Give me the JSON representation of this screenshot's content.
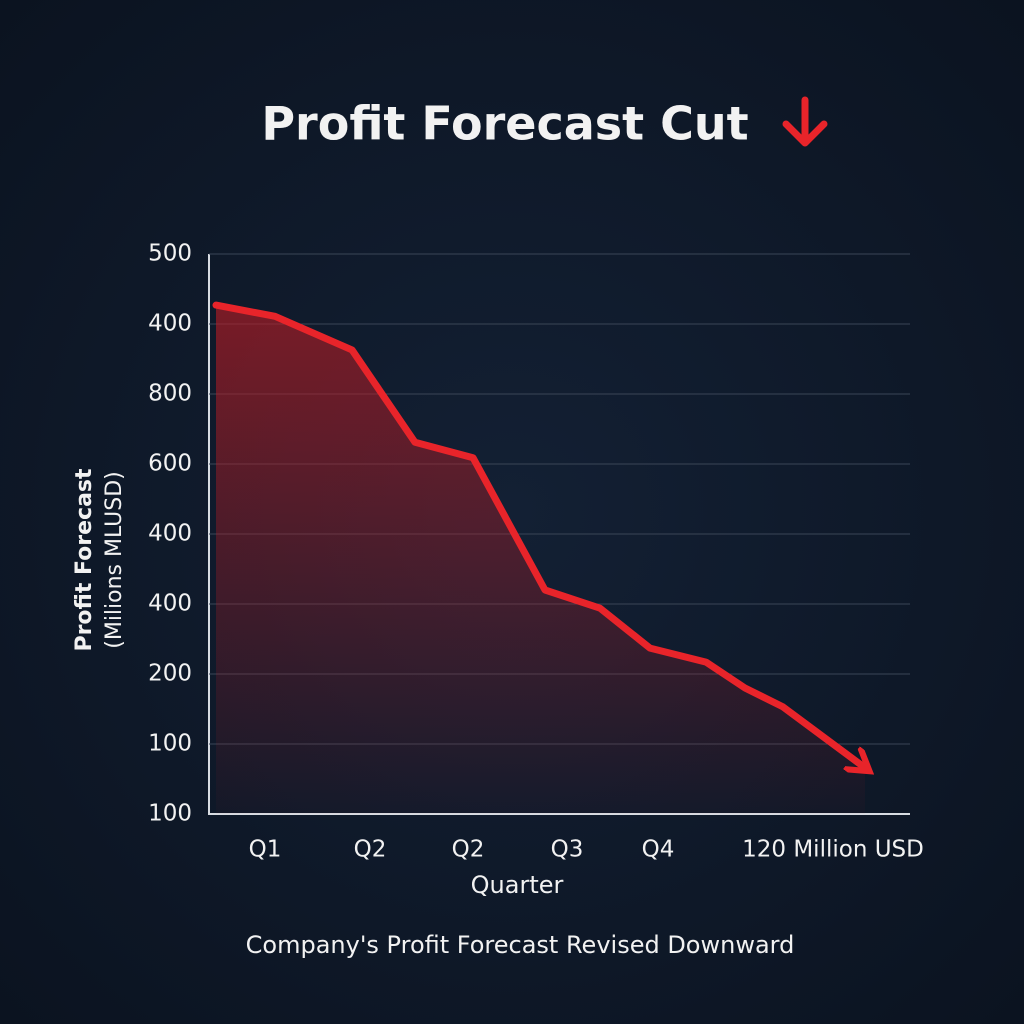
{
  "chart_data": {
    "type": "line",
    "title": "Profit Forecast Cut",
    "y_label": [
      "Profit  Forecast",
      "(Milions MLUSD)"
    ],
    "x_label": "Quarter",
    "caption": "Company's Profit Forecast Revised Downward",
    "x": [
      0.07,
      0.66,
      1.43,
      2.06,
      2.64,
      3.36,
      3.91,
      4.41,
      4.97,
      5.36,
      5.74,
      6.56
    ],
    "series": [
      {
        "color": "#e8242a",
        "values": [
          7.27,
          7.11,
          6.63,
          5.31,
          5.09,
          3.2,
          2.94,
          2.37,
          2.17,
          1.8,
          1.53,
          0.66
        ]
      }
    ],
    "xlim": [
      0,
      7.01
    ],
    "xticks": [
      {
        "value": 0.56,
        "label": "Q1"
      },
      {
        "value": 1.61,
        "label": "Q2"
      },
      {
        "value": 2.59,
        "label": "Q2"
      },
      {
        "value": 3.58,
        "label": "Q3"
      },
      {
        "value": 4.49,
        "label": "Q4"
      },
      {
        "value": 6.24,
        "label": "120 Million USD"
      }
    ],
    "ylim": [
      0,
      8
    ],
    "yticks": [
      {
        "value": 8,
        "label": "500"
      },
      {
        "value": 7,
        "label": "400"
      },
      {
        "value": 6,
        "label": "800"
      },
      {
        "value": 5,
        "label": "600"
      },
      {
        "value": 4,
        "label": "400"
      },
      {
        "value": 3,
        "label": "400"
      },
      {
        "value": 2,
        "label": "200"
      },
      {
        "value": 1,
        "label": "100"
      },
      {
        "value": 0,
        "label": "100"
      }
    ],
    "grid": true
  }
}
